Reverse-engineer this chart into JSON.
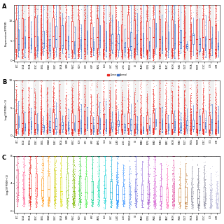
{
  "n_groups": 33,
  "panel_A": {
    "label": "A",
    "ylabel": "Expression(FPKM)",
    "ylim": [
      -0.3,
      14
    ],
    "y_ticks": [
      0,
      5,
      10
    ],
    "tumor_color": "#e8251f",
    "normal_color": "#3d6fc8",
    "scatter_alpha": 0.35,
    "scatter_size": 0.4
  },
  "panel_B": {
    "label": "B",
    "ylabel": "Log2(FPKM+1)",
    "ylim": [
      -0.3,
      10
    ],
    "y_ticks": [
      0,
      5,
      10
    ],
    "tumor_color": "#e8251f",
    "normal_color": "#3d6fc8",
    "scatter_alpha": 0.35,
    "scatter_size": 0.4
  },
  "panel_C": {
    "label": "C",
    "ylabel": "Log2(FPKM+1)",
    "ylim": [
      -0.3,
      8
    ],
    "y_ticks": [
      0,
      4,
      8
    ],
    "scatter_alpha": 0.45,
    "scatter_size": 0.4
  },
  "cancer_types": [
    "ACC",
    "BLCA",
    "BRCA",
    "CESC",
    "CHOL",
    "COAD",
    "DLBC",
    "ESCA",
    "GBM",
    "HNSC",
    "KICH",
    "KIRC",
    "KIRP",
    "LAML",
    "LGG",
    "LIHC",
    "LUAD",
    "LUSC",
    "MESO",
    "OV",
    "PAAD",
    "PCPG",
    "PRAD",
    "READ",
    "SARC",
    "SKCM",
    "STAD",
    "TGCT",
    "THCA",
    "THYM",
    "UCEC",
    "UCS",
    "UVM"
  ],
  "colors_C": [
    "#e75480",
    "#ff6699",
    "#e8251f",
    "#ff4444",
    "#ff8c00",
    "#ffaa33",
    "#cccc00",
    "#dddd00",
    "#9acd32",
    "#7db800",
    "#32cd32",
    "#44ee44",
    "#00cc88",
    "#00ddaa",
    "#00ced1",
    "#00aacc",
    "#1e90ff",
    "#4499ff",
    "#6495ed",
    "#7777dd",
    "#9370db",
    "#aa55cc",
    "#da70d6",
    "#cc55cc",
    "#ff69b4",
    "#dd4499",
    "#cd853f",
    "#bb7733",
    "#888899",
    "#777788",
    "#9999aa",
    "#aaaacc",
    "#bbbbdd"
  ],
  "legend_tumor": "Tumor",
  "legend_normal": "Normal",
  "background_alt": "#e8e8e8",
  "background_main": "#ffffff"
}
